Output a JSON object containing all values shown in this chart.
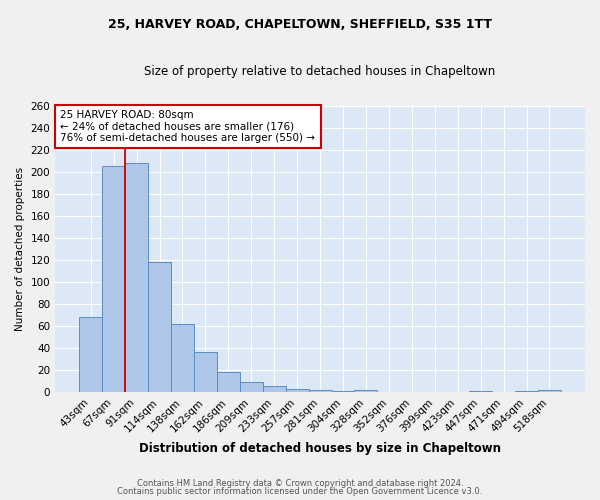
{
  "title_line1": "25, HARVEY ROAD, CHAPELTOWN, SHEFFIELD, S35 1TT",
  "title_line2": "Size of property relative to detached houses in Chapeltown",
  "xlabel": "Distribution of detached houses by size in Chapeltown",
  "ylabel": "Number of detached properties",
  "bar_labels": [
    "43sqm",
    "67sqm",
    "91sqm",
    "114sqm",
    "138sqm",
    "162sqm",
    "186sqm",
    "209sqm",
    "233sqm",
    "257sqm",
    "281sqm",
    "304sqm",
    "328sqm",
    "352sqm",
    "376sqm",
    "399sqm",
    "423sqm",
    "447sqm",
    "471sqm",
    "494sqm",
    "518sqm"
  ],
  "bar_values": [
    68,
    205,
    208,
    118,
    62,
    36,
    18,
    9,
    5,
    3,
    2,
    1,
    2,
    0,
    0,
    0,
    0,
    1,
    0,
    1,
    2
  ],
  "bar_color": "#aec6e8",
  "bar_edge_color": "#5b8ec4",
  "background_color": "#dce8f5",
  "grid_color": "#ffffff",
  "annotation_line1": "25 HARVEY ROAD: 80sqm",
  "annotation_line2": "← 24% of detached houses are smaller (176)",
  "annotation_line3": "76% of semi-detached houses are larger (550) →",
  "annotation_box_color": "#ffffff",
  "annotation_edge_color": "#cc0000",
  "red_line_color": "#cc0000",
  "red_line_index": 2,
  "footer_line1": "Contains HM Land Registry data © Crown copyright and database right 2024.",
  "footer_line2": "Contains public sector information licensed under the Open Government Licence v3.0.",
  "ylim": [
    0,
    260
  ],
  "yticks": [
    0,
    20,
    40,
    60,
    80,
    100,
    120,
    140,
    160,
    180,
    200,
    220,
    240,
    260
  ],
  "fig_width": 6.0,
  "fig_height": 5.0,
  "fig_dpi": 100
}
